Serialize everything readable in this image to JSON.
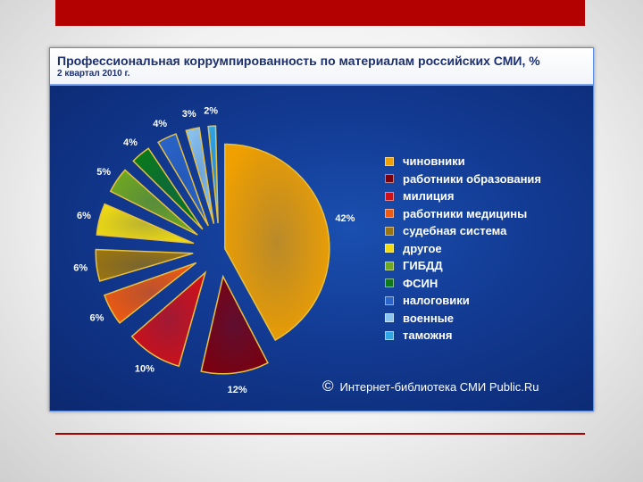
{
  "chart_data": {
    "type": "pie",
    "title": "Профессиональная коррумпированность по материалам российских СМИ, %",
    "subtitle": "2 квартал 2010 г.",
    "categories": [
      "чиновники",
      "работники образования",
      "милиция",
      "работники медицины",
      "судебная система",
      "другое",
      "ГИБДД",
      "ФСИН",
      "налоговики",
      "военные",
      "таможня"
    ],
    "values": [
      42,
      12,
      10,
      6,
      6,
      6,
      5,
      4,
      4,
      3,
      2
    ],
    "value_labels": [
      "42%",
      "12%",
      "10%",
      "6%",
      "6%",
      "6%",
      "5%",
      "4%",
      "4%",
      "3%",
      "2%"
    ],
    "colors": [
      "#f0a000",
      "#7a0010",
      "#d01018",
      "#f05a10",
      "#9a7410",
      "#f2dc10",
      "#70a820",
      "#0a7a1a",
      "#2a64c8",
      "#8cc4f0",
      "#30a8e8"
    ],
    "legend_position": "right",
    "exploded": true
  },
  "credit": {
    "symbol": "©",
    "text": "Интернет-библиотека СМИ Public.Ru"
  }
}
